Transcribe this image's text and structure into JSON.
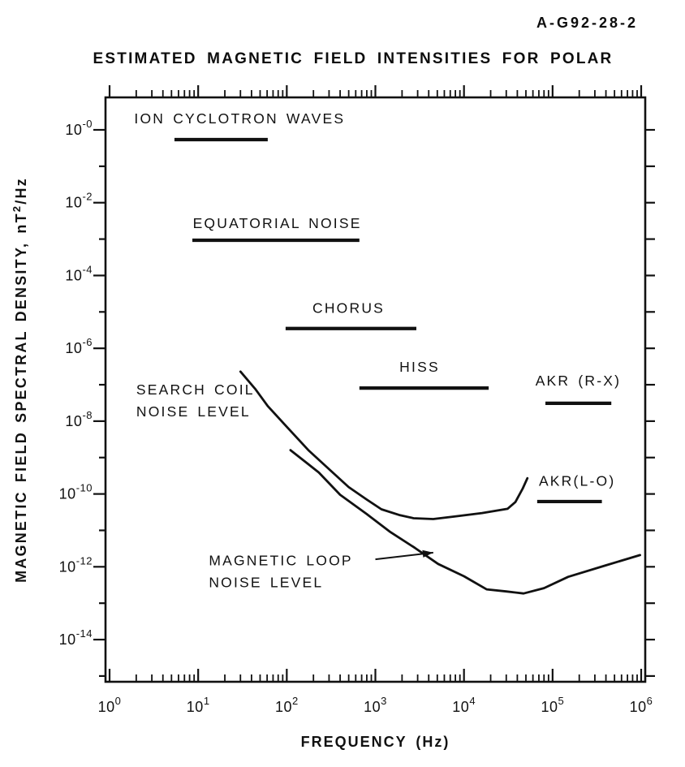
{
  "header": {
    "figure_id": "A-G92-28-2"
  },
  "chart_data": {
    "type": "line",
    "title": "ESTIMATED MAGNETIC FIELD INTENSITIES FOR POLAR",
    "xlabel": "FREQUENCY (Hz)",
    "ylabel": {
      "prefix": "MAGNETIC FIELD SPECTRAL DENSITY, nT",
      "sup": "2",
      "suffix": "/Hz"
    },
    "grid": false,
    "x_axis": {
      "scale": "log",
      "unit": "Hz",
      "range": [
        1,
        1000000
      ],
      "tick_label_exps": [
        "0",
        "1",
        "2",
        "3",
        "4",
        "5",
        "6"
      ]
    },
    "y_axis": {
      "scale": "log",
      "unit": "nT2/Hz",
      "range": [
        1e-15,
        1
      ],
      "tick_label_exps": [
        "-0",
        "-2",
        "-4",
        "-6",
        "-8",
        "-10",
        "-12",
        "-14"
      ]
    },
    "bands": [
      {
        "label": "ION CYCLOTRON WAVES",
        "x1": 5.4,
        "x2": 61,
        "level": 0.54,
        "label_pos": [
          1.9,
          1.5
        ]
      },
      {
        "label": "EQUATORIAL NOISE",
        "x1": 8.6,
        "x2": 660,
        "level": 0.00093,
        "label_pos": [
          8.7,
          0.002
        ]
      },
      {
        "label": "CHORUS",
        "x1": 97,
        "x2": 2900,
        "level": 3.5e-06,
        "label_pos": [
          195,
          9.5e-06
        ]
      },
      {
        "label": "HISS",
        "x1": 660,
        "x2": 19000,
        "level": 8.1e-08,
        "label_pos": [
          1870,
          2.3e-07
        ]
      },
      {
        "label": "AKR (R-X)",
        "x1": 83000,
        "x2": 460000,
        "level": 3.1e-08,
        "label_pos": [
          64000,
          9.5e-08
        ]
      },
      {
        "label": "AKR(L-O)",
        "x1": 67000,
        "x2": 360000,
        "level": 6.2e-11,
        "label_pos": [
          70000,
          1.7e-10
        ]
      }
    ],
    "series": [
      {
        "name": "SEARCH COIL NOISE LEVEL",
        "points": [
          [
            30,
            2.3e-07
          ],
          [
            44,
            7.7e-08
          ],
          [
            61,
            2.6e-08
          ],
          [
            100,
            7e-09
          ],
          [
            175,
            1.6e-09
          ],
          [
            300,
            4.8e-10
          ],
          [
            500,
            1.55e-10
          ],
          [
            800,
            7e-11
          ],
          [
            1170,
            3.8e-11
          ],
          [
            1900,
            2.6e-11
          ],
          [
            2700,
            2.15e-11
          ],
          [
            4500,
            2.05e-11
          ],
          [
            7800,
            2.4e-11
          ],
          [
            16000,
            3e-11
          ],
          [
            31000,
            3.9e-11
          ],
          [
            38000,
            6e-11
          ],
          [
            46000,
            1.4e-10
          ],
          [
            52000,
            2.7e-10
          ]
        ]
      },
      {
        "name": "MAGNETIC LOOP NOISE LEVEL",
        "points": [
          [
            110,
            1.6e-09
          ],
          [
            230,
            3.9e-10
          ],
          [
            400,
            9.5e-11
          ],
          [
            800,
            2.8e-11
          ],
          [
            1450,
            9.3e-12
          ],
          [
            2800,
            3.3e-12
          ],
          [
            5100,
            1.2e-12
          ],
          [
            10000,
            5.5e-13
          ],
          [
            18000,
            2.4e-13
          ],
          [
            30000,
            2.1e-13
          ],
          [
            47000,
            1.85e-13
          ],
          [
            80000,
            2.6e-13
          ],
          [
            150000,
            5.3e-13
          ],
          [
            400000,
            1.1e-12
          ],
          [
            970000,
            2.1e-12
          ]
        ]
      }
    ],
    "annotations": [
      {
        "lines": [
          "SEARCH COIL",
          "NOISE LEVEL"
        ],
        "pos": [
          2.0,
          5.4e-08
        ]
      },
      {
        "lines": [
          "MAGNETIC LOOP",
          "NOISE LEVEL"
        ],
        "pos": [
          13.2,
          1.1e-12
        ],
        "arrow_from": [
          1000,
          1.6e-12
        ],
        "arrow_to": [
          4500,
          2.45e-12
        ]
      }
    ]
  }
}
